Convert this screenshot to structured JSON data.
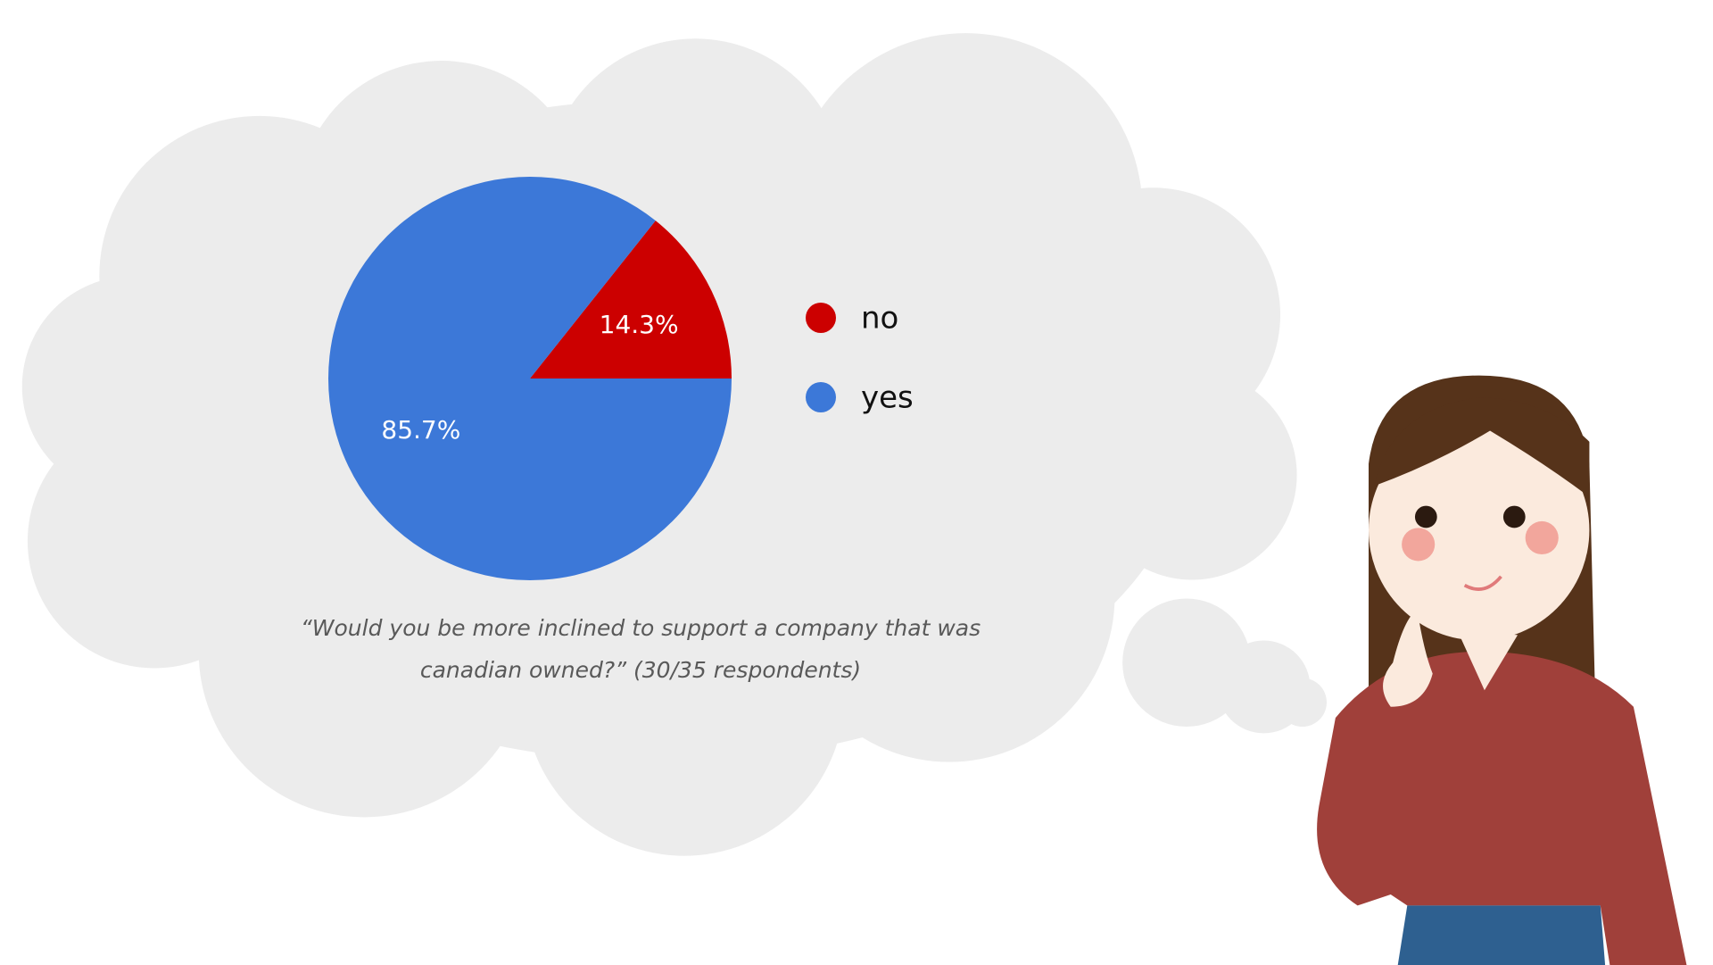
{
  "chart_data": {
    "type": "pie",
    "categories": [
      "no",
      "yes"
    ],
    "values": [
      14.3,
      85.7
    ],
    "value_labels": [
      "14.3%",
      "85.7%"
    ],
    "colors": [
      "#cc0000",
      "#3c78d8"
    ],
    "caption": "“Would you be more inclined to support a company that was canadian owned?” (30/35 respondents)"
  }
}
